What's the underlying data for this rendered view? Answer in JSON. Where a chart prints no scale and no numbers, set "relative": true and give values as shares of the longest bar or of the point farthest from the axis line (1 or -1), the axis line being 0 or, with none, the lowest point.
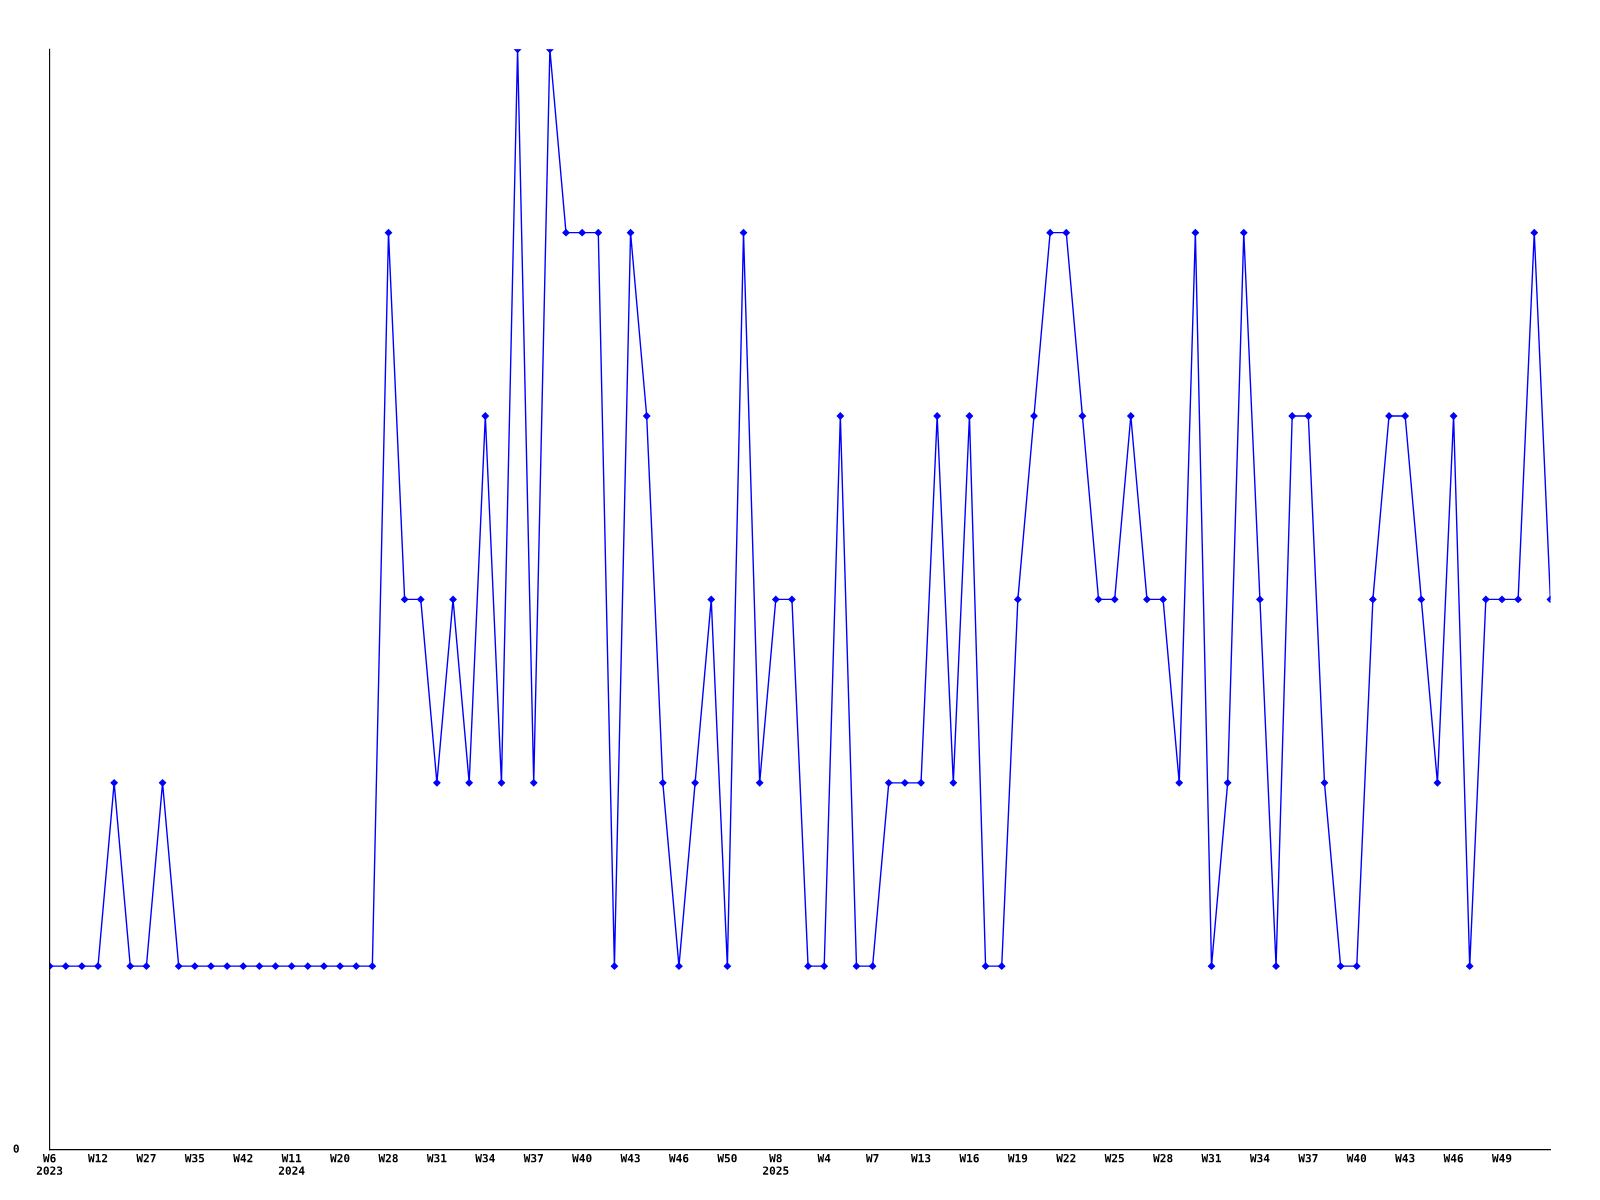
{
  "chart_data": {
    "type": "line",
    "relative": true,
    "marker": "diamond",
    "line_style": "solid",
    "grid": false,
    "legend": false,
    "categories": [
      "W6\n2023",
      null,
      null,
      "W12",
      null,
      null,
      "W27",
      null,
      null,
      "W35",
      null,
      null,
      "W42",
      null,
      null,
      "W11\n2024",
      null,
      null,
      "W20",
      null,
      null,
      "W28",
      null,
      null,
      "W31",
      null,
      null,
      "W34",
      null,
      null,
      "W37",
      null,
      null,
      "W40",
      null,
      null,
      "W43",
      null,
      null,
      "W46",
      null,
      null,
      "W50",
      null,
      null,
      "W8\n2025",
      null,
      null,
      "W4",
      null,
      null,
      "W7",
      null,
      null,
      "W13",
      null,
      null,
      "W16",
      null,
      null,
      "W19",
      null,
      null,
      "W22",
      null,
      null,
      "W25",
      null,
      null,
      "W28",
      null,
      null,
      "W31",
      null,
      null,
      "W34",
      null,
      null,
      "W37",
      null,
      null,
      "W40",
      null,
      null,
      "W43",
      null,
      null,
      "W46",
      null,
      null,
      "W49",
      null,
      null,
      null
    ],
    "series": [
      {
        "color": "#0000ff",
        "values": [
          0.1667,
          0.1667,
          0.1667,
          0.1667,
          0.3333,
          0.1667,
          0.1667,
          0.3333,
          0.1667,
          0.1667,
          0.1667,
          0.1667,
          0.1667,
          0.1667,
          0.1667,
          0.1667,
          0.1667,
          0.1667,
          0.1667,
          0.1667,
          0.1667,
          0.8333,
          0.5,
          0.5,
          0.3333,
          0.5,
          0.3333,
          0.6667,
          0.3333,
          1,
          0.3333,
          1,
          0.8333,
          0.8333,
          0.8333,
          0.1667,
          0.8333,
          0.6667,
          0.3333,
          0.1667,
          0.3333,
          0.5,
          0.1667,
          0.8333,
          0.3333,
          0.5,
          0.5,
          0.1667,
          0.1667,
          0.6667,
          0.1667,
          0.1667,
          0.3333,
          0.3333,
          0.3333,
          0.6667,
          0.3333,
          0.6667,
          0.1667,
          0.1667,
          0.5,
          0.6667,
          0.8333,
          0.8333,
          0.6667,
          0.5,
          0.5,
          0.6667,
          0.5,
          0.5,
          0.3333,
          0.8333,
          0.1667,
          0.3333,
          0.8333,
          0.5,
          0.1667,
          0.6667,
          0.6667,
          0.3333,
          0.1667,
          0.1667,
          0.5,
          0.6667,
          0.6667,
          0.5,
          0.3333,
          0.6667,
          0.1667,
          0.5,
          0.5,
          0.5,
          0.8333,
          0.5
        ]
      }
    ],
    "annotations": [
      "0"
    ]
  }
}
